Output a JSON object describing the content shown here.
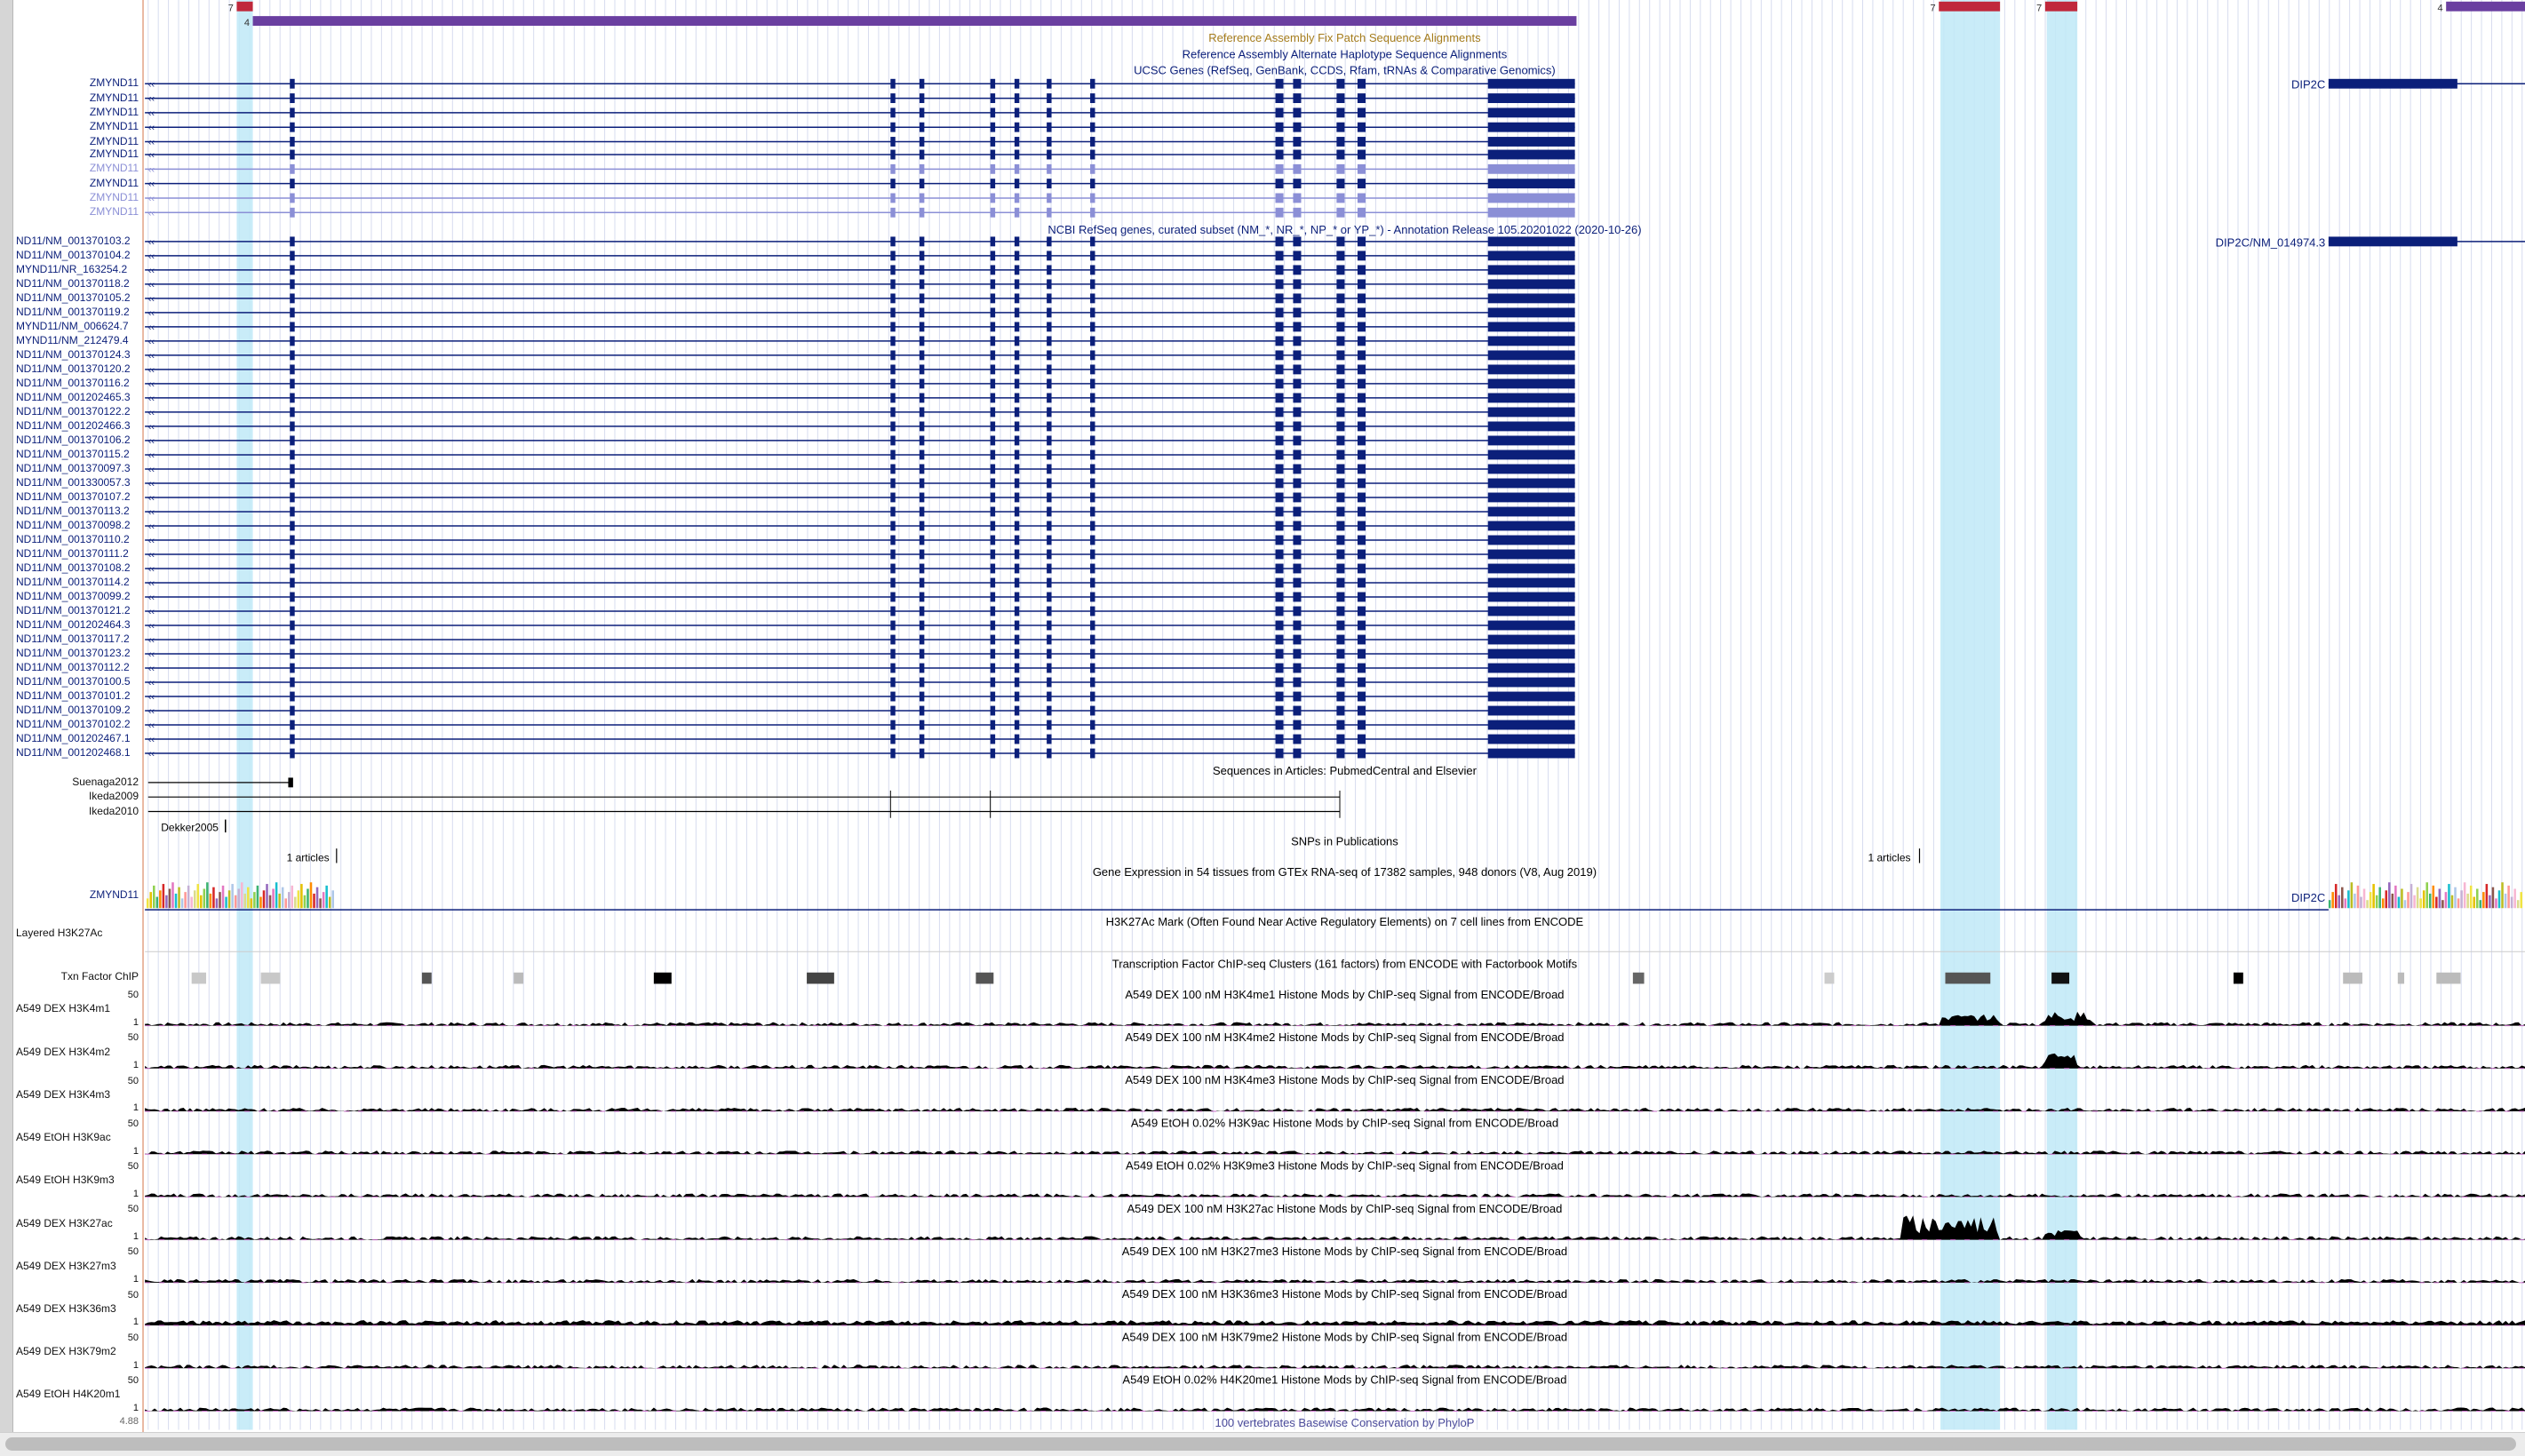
{
  "colors": {
    "gene": "#0b1f7a",
    "gene_light": "#8b8fd6",
    "fix_patch": "#c0283b",
    "alt_hap": "#6a3fa0",
    "highlight": "#bfe9f7",
    "fix_patch_title": "#a57c1c",
    "grid": "#d7dcef"
  },
  "track_titles": {
    "fix_patch": "Reference Assembly Fix Patch Sequence Alignments",
    "alt_hap": "Reference Assembly Alternate Haplotype Sequence Alignments",
    "ucsc": "UCSC Genes (RefSeq, GenBank, CCDS, Rfam, tRNAs & Comparative Genomics)",
    "refseq": "NCBI RefSeq genes, curated subset (NM_*, NR_*, NP_* or YP_*) - Annotation Release 105.20201022 (2020-10-26)",
    "articles": "Sequences in Articles: PubmedCentral and Elsevier",
    "snps": "SNPs in Publications",
    "gtex": "Gene Expression in 54 tissues from GTEx RNA-seq of 17382 samples, 948 donors (V8, Aug 2019)",
    "h3k27ac_layered": "H3K27Ac Mark (Often Found Near Active Regulatory Elements) on 7 cell lines from ENCODE",
    "txn": "Transcription Factor ChIP-seq Clusters (161 factors) from ENCODE with Factorbook Motifs",
    "phylop": "100 vertebrates Basewise Conservation by PhyloP"
  },
  "patch_labels": {
    "fix_left": "7",
    "alt_left": "4",
    "fix_mid1": "7",
    "fix_mid2": "7",
    "alt_right": "4"
  },
  "ucsc_genes": {
    "left": [
      "ZMYND11",
      "ZMYND11",
      "ZMYND11",
      "ZMYND11",
      "ZMYND11",
      "ZMYND11",
      "ZMYND11",
      "ZMYND11",
      "ZMYND11",
      "ZMYND11"
    ],
    "right": "DIP2C"
  },
  "refseq_genes": {
    "left": [
      "ND11/NM_001370103.2",
      "ND11/NM_001370104.2",
      "MYND11/NR_163254.2",
      "ND11/NM_001370118.2",
      "ND11/NM_001370105.2",
      "ND11/NM_001370119.2",
      "MYND11/NM_006624.7",
      "MYND11/NM_212479.4",
      "ND11/NM_001370124.3",
      "ND11/NM_001370120.2",
      "ND11/NM_001370116.2",
      "ND11/NM_001202465.3",
      "ND11/NM_001370122.2",
      "ND11/NM_001202466.3",
      "ND11/NM_001370106.2",
      "ND11/NM_001370115.2",
      "ND11/NM_001370097.3",
      "ND11/NM_001330057.3",
      "ND11/NM_001370107.2",
      "ND11/NM_001370113.2",
      "ND11/NM_001370098.2",
      "ND11/NM_001370110.2",
      "ND11/NM_001370111.2",
      "ND11/NM_001370108.2",
      "ND11/NM_001370114.2",
      "ND11/NM_001370099.2",
      "ND11/NM_001370121.2",
      "ND11/NM_001202464.3",
      "ND11/NM_001370117.2",
      "ND11/NM_001370123.2",
      "ND11/NM_001370112.2",
      "ND11/NM_001370100.5",
      "ND11/NM_001370101.2",
      "ND11/NM_001370109.2",
      "ND11/NM_001370102.2",
      "ND11/NM_001202467.1",
      "ND11/NM_001202468.1"
    ],
    "right": "DIP2C/NM_014974.3"
  },
  "articles": [
    "Suenaga2012",
    "Ikeda2009",
    "Ikeda2010"
  ],
  "articles_extra": "Dekker2005",
  "snp_articles": {
    "left": "1 articles",
    "right": "1 articles"
  },
  "gtex_genes": {
    "left": "ZMYND11",
    "right": "DIP2C"
  },
  "layered_label": "Layered H3K27Ac",
  "txn_label": "Txn Factor ChIP",
  "signal_tracks": [
    {
      "label": "A549 DEX H3K4m1",
      "title": "A549 DEX 100 nM H3K4me1 Histone Mods by ChIP-seq Signal from ENCODE/Broad",
      "max": "50",
      "min": "1"
    },
    {
      "label": "A549 DEX H3K4m2",
      "title": "A549 DEX 100 nM H3K4me2 Histone Mods by ChIP-seq Signal from ENCODE/Broad",
      "max": "50",
      "min": "1"
    },
    {
      "label": "A549 DEX H3K4m3",
      "title": "A549 DEX 100 nM H3K4me3 Histone Mods by ChIP-seq Signal from ENCODE/Broad",
      "max": "50",
      "min": "1"
    },
    {
      "label": "A549 EtOH H3K9ac",
      "title": "A549 EtOH 0.02% H3K9ac Histone Mods by ChIP-seq Signal from ENCODE/Broad",
      "max": "50",
      "min": "1"
    },
    {
      "label": "A549 EtOH H3K9m3",
      "title": "A549 EtOH 0.02% H3K9me3 Histone Mods by ChIP-seq Signal from ENCODE/Broad",
      "max": "50",
      "min": "1"
    },
    {
      "label": "A549 DEX H3K27ac",
      "title": "A549 DEX 100 nM H3K27ac Histone Mods by ChIP-seq Signal from ENCODE/Broad",
      "max": "50",
      "min": "1"
    },
    {
      "label": "A549 DEX H3K27m3",
      "title": "A549 DEX 100 nM H3K27me3 Histone Mods by ChIP-seq Signal from ENCODE/Broad",
      "max": "50",
      "min": "1"
    },
    {
      "label": "A549 DEX H3K36m3",
      "title": "A549 DEX 100 nM H3K36me3 Histone Mods by ChIP-seq Signal from ENCODE/Broad",
      "max": "50",
      "min": "1"
    },
    {
      "label": "A549 DEX H3K79m2",
      "title": "A549 DEX 100 nM H3K79me2 Histone Mods by ChIP-seq Signal from ENCODE/Broad",
      "max": "50",
      "min": "1"
    },
    {
      "label": "A549 EtOH H4K20m1",
      "title": "A549 EtOH 0.02% H4K20me1 Histone Mods by ChIP-seq Signal from ENCODE/Broad",
      "max": "50",
      "min": "1"
    }
  ],
  "phylop_max": "4.88"
}
